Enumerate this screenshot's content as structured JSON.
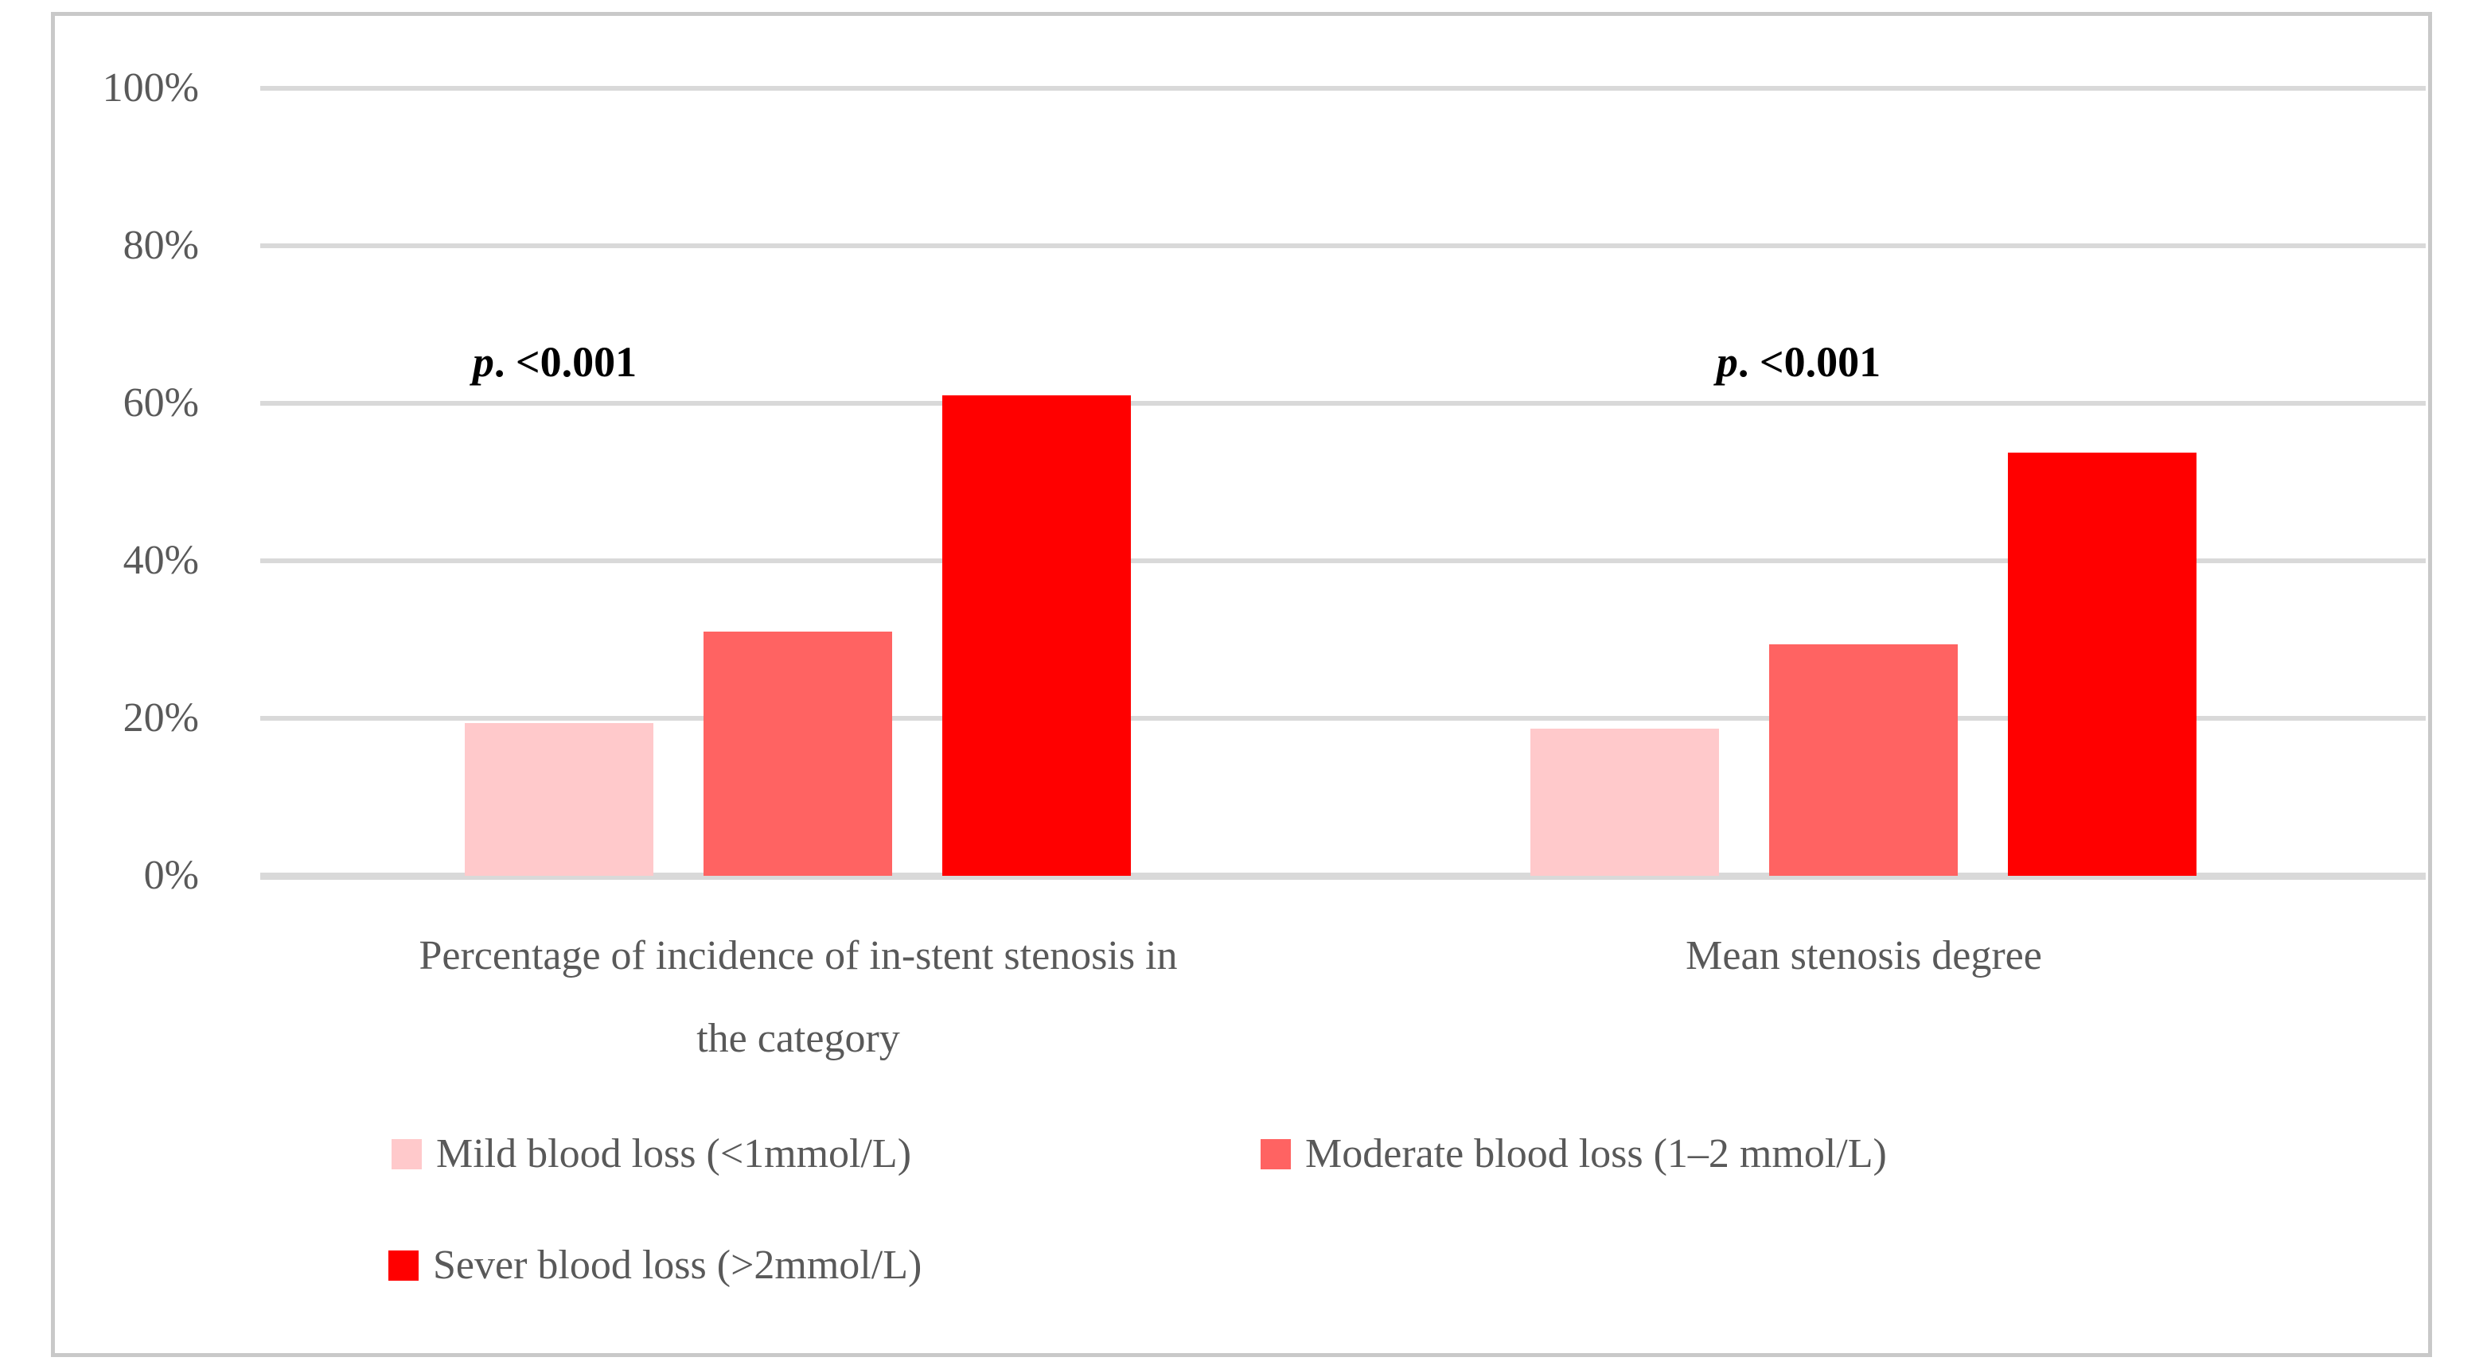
{
  "figure": {
    "background": "#FFFFFF",
    "border_color": "#C9C9C9",
    "gridline_color": "#D9D9D9",
    "axis_text_color": "#595959",
    "annotation_color": "#000000"
  },
  "chart_data": {
    "type": "bar",
    "title": "",
    "xlabel": "",
    "ylabel": "",
    "ylim": [
      0,
      100
    ],
    "grid": true,
    "legend_position": "bottom",
    "y_ticks": [
      "0%",
      "20%",
      "40%",
      "60%",
      "80%",
      "100%"
    ],
    "categories": [
      "Percentage of incidence of in-stent stenosis in\nthe category",
      "Mean stenosis degree"
    ],
    "series": [
      {
        "name": "Mild blood loss (<1mmol/L)",
        "color": "#FFC9CB",
        "values": [
          19.4,
          18.7
        ]
      },
      {
        "name": "Moderate blood loss (1–2 mmol/L)",
        "color": "#FF6362",
        "values": [
          31.0,
          29.4
        ]
      },
      {
        "name": "Sever blood loss (>2mmol/L)",
        "color": "#FF0000",
        "values": [
          61.0,
          53.7
        ]
      }
    ],
    "annotations": [
      {
        "italic": "p",
        "text": ". <0.001",
        "group": 0
      },
      {
        "italic": "p",
        "text": ". <0.001",
        "group": 1
      }
    ]
  }
}
